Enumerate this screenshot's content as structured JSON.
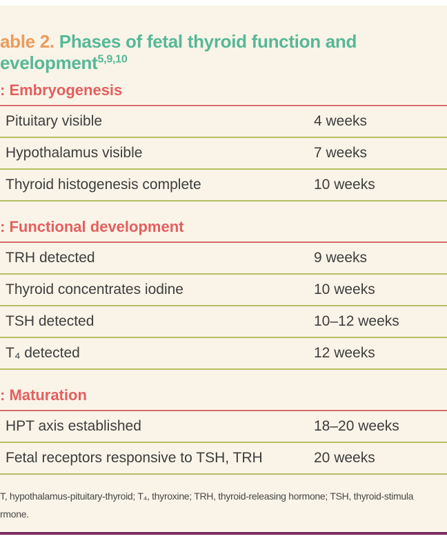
{
  "title": {
    "label_bold": "able 2.",
    "line1": "Phases of fetal thyroid function and",
    "line2": "evelopment",
    "superscript": "5,9,10"
  },
  "sections": [
    {
      "header": ": Embryogenesis",
      "rows": [
        {
          "label": "Pituitary visible",
          "value": "4 weeks"
        },
        {
          "label": "Hypothalamus visible",
          "value": "7 weeks"
        },
        {
          "label": "Thyroid histogenesis complete",
          "value": "10 weeks"
        }
      ]
    },
    {
      "header": ": Functional development",
      "rows": [
        {
          "label": "TRH detected",
          "value": "9 weeks"
        },
        {
          "label": "Thyroid concentrates iodine",
          "value": "10 weeks"
        },
        {
          "label": "TSH detected",
          "value": "10–12 weeks"
        },
        {
          "label": "T₄ detected",
          "value": "12 weeks"
        }
      ]
    },
    {
      "header": ": Maturation",
      "rows": [
        {
          "label": "HPT axis established",
          "value": "18–20 weeks"
        },
        {
          "label": "Fetal receptors responsive to TSH, TRH",
          "value": "20 weeks"
        }
      ]
    }
  ],
  "footnote": {
    "line1": "T, hypothalamus-pituitary-thyroid; T₄, thyroxine; TRH, thyroid-releasing hormone; TSH, thyroid-stimula",
    "line2": "rmone."
  },
  "colors": {
    "background": "#FAF4E8",
    "accent_orange": "#ED9B5C",
    "accent_teal": "#56B897",
    "section_header": "#E45F5F",
    "rule_red": "#D76B6B",
    "rule_olive": "#B3BF62",
    "rule_purple": "#7B2D5F",
    "text": "#3D3D3D"
  }
}
